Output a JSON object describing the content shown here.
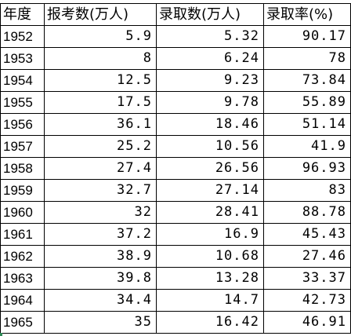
{
  "chart_data": {
    "type": "table",
    "columns": [
      "年度",
      "报考数(万人)",
      "录取数(万人)",
      "录取率(%)"
    ],
    "rows": [
      [
        "1952",
        "5.9",
        "5.32",
        "90.17"
      ],
      [
        "1953",
        "8",
        "6.24",
        "78"
      ],
      [
        "1954",
        "12.5",
        "9.23",
        "73.84"
      ],
      [
        "1955",
        "17.5",
        "9.78",
        "55.89"
      ],
      [
        "1956",
        "36.1",
        "18.46",
        "51.14"
      ],
      [
        "1957",
        "25.2",
        "10.56",
        "41.9"
      ],
      [
        "1958",
        "27.4",
        "26.56",
        "96.93"
      ],
      [
        "1959",
        "32.7",
        "27.14",
        "83"
      ],
      [
        "1960",
        "32",
        "28.41",
        "88.78"
      ],
      [
        "1961",
        "37.2",
        "16.9",
        "45.43"
      ],
      [
        "1962",
        "38.9",
        "10.68",
        "27.46"
      ],
      [
        "1963",
        "39.8",
        "13.28",
        "33.37"
      ],
      [
        "1964",
        "34.4",
        "14.7",
        "42.73"
      ],
      [
        "1965",
        "35",
        "16.42",
        "46.91"
      ]
    ]
  },
  "colors": {
    "border": "#000000",
    "text": "#000000",
    "background": "#ffffff",
    "corner_mark": "#2e8b57"
  }
}
